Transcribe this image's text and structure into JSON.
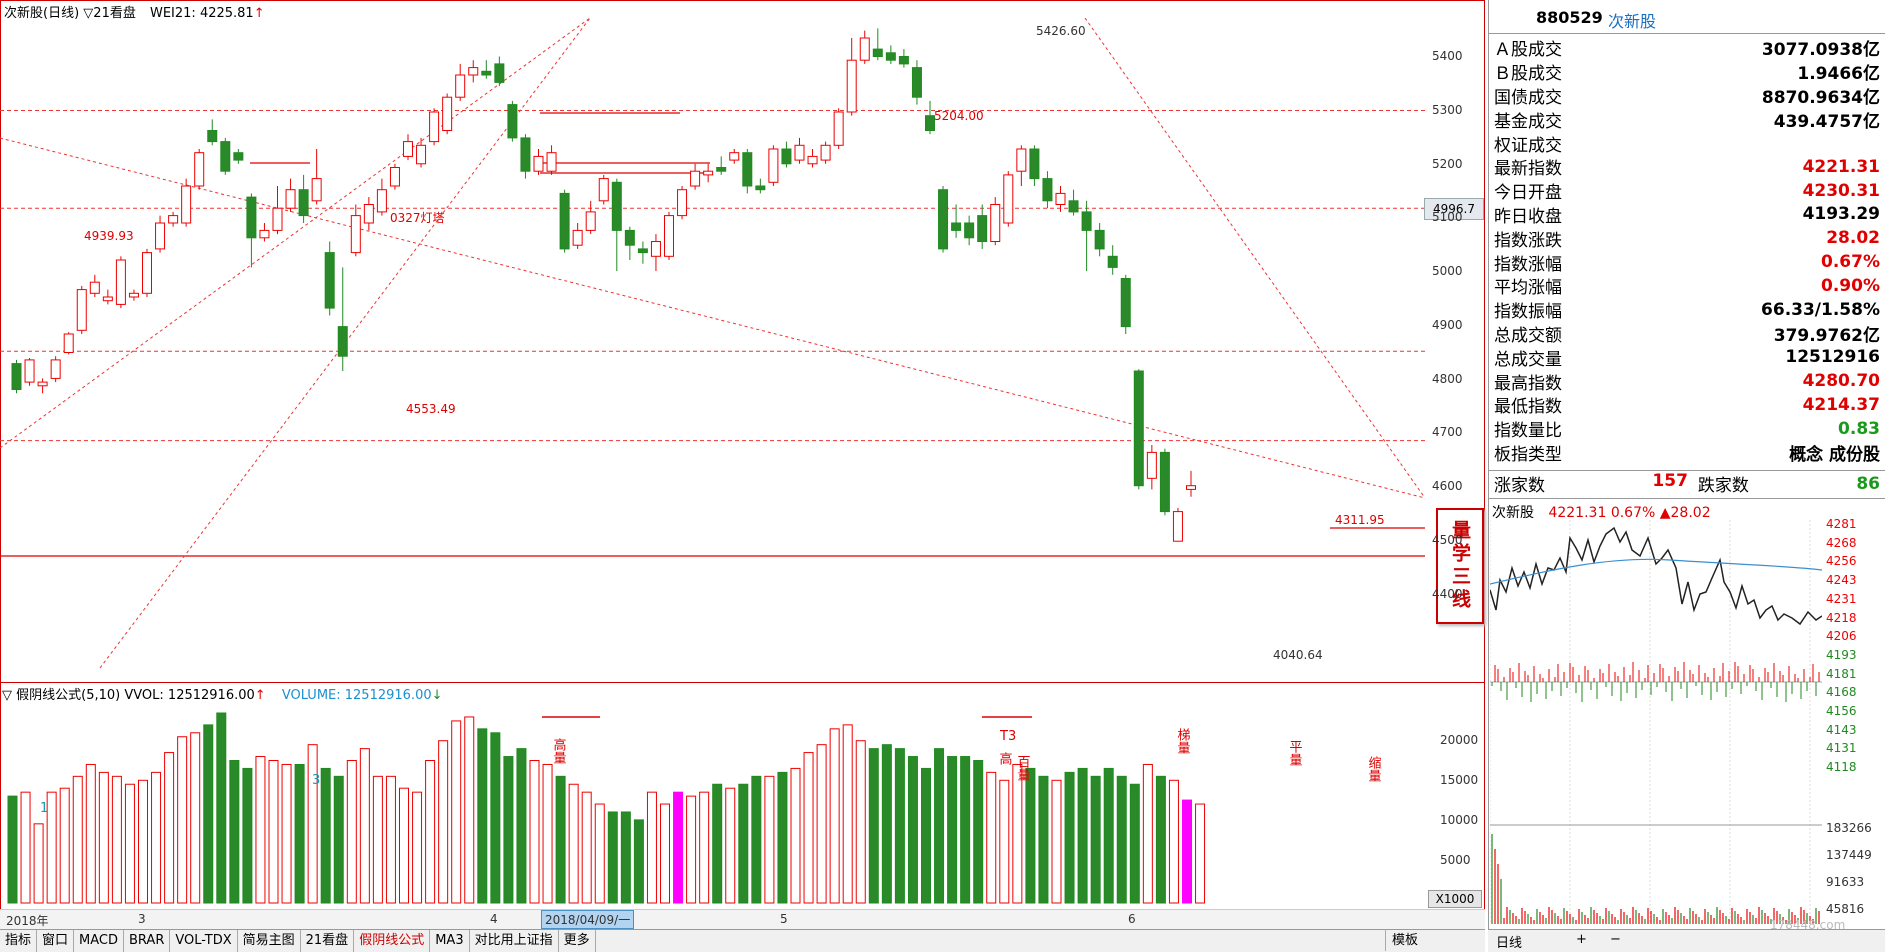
{
  "main": {
    "stock_name": "次新股(日线)",
    "marker": "▽21看盘",
    "indicator": "WEI21: 4225.81",
    "indicator_arrow": "↑",
    "price_axis": [
      "5400",
      "5300",
      "5200",
      "5100",
      "5000",
      "4900",
      "4800",
      "4700",
      "4600",
      "4500",
      "4400"
    ],
    "current_price_tag": "4996.7",
    "annotations": {
      "high": "5426.60",
      "line_5204": "5204.00",
      "line_4939": "4939.93",
      "label_0327": "0327灯塔",
      "line_4553": "4553.49",
      "line_4311": "4311.95",
      "low": "4040.64"
    },
    "seal_text": "量学三线"
  },
  "volume": {
    "title": "▽ 假阴线公式(5,10)",
    "vvol": "VVOL: 12512916.00",
    "vvol_arrow": "↑",
    "volume": "VOLUME: 12512916.00",
    "volume_arrow": "↓",
    "axis": [
      "20000",
      "15000",
      "10000",
      "5000"
    ],
    "unit": "X1000",
    "labels": {
      "one": "1",
      "three": "3",
      "gaoliang": "高量",
      "t3": "T3",
      "gao": "高",
      "bai": "百量",
      "ti": "梯量",
      "ping": "平量",
      "suo": "缩量"
    }
  },
  "date_axis": {
    "year": "2018年",
    "m3": "3",
    "m4": "4",
    "selected": "2018/04/09/一",
    "m5": "5",
    "m6": "6"
  },
  "toolbar": {
    "tabs": [
      "指标",
      "窗口",
      "MACD",
      "BRAR",
      "VOL-TDX",
      "简易主图",
      "21看盘",
      "假阴线公式",
      "MA3",
      "对比用上证指",
      "更多"
    ],
    "active": "假阴线公式",
    "template": "模板"
  },
  "quote": {
    "code": "880529",
    "name": "次新股",
    "rows": [
      {
        "label": "Ａ股成交",
        "value": "3077.0938亿",
        "color": "black"
      },
      {
        "label": "Ｂ股成交",
        "value": "1.9466亿",
        "color": "black"
      },
      {
        "label": "国债成交",
        "value": "8870.9634亿",
        "color": "black"
      },
      {
        "label": "基金成交",
        "value": "439.4757亿",
        "color": "black"
      },
      {
        "label": "权证成交",
        "value": "",
        "color": "black"
      },
      {
        "label": "最新指数",
        "value": "4221.31",
        "color": "red"
      },
      {
        "label": "今日开盘",
        "value": "4230.31",
        "color": "red"
      },
      {
        "label": "昨日收盘",
        "value": "4193.29",
        "color": "black"
      },
      {
        "label": "指数涨跌",
        "value": "28.02",
        "color": "red"
      },
      {
        "label": "指数涨幅",
        "value": "0.67%",
        "color": "red"
      },
      {
        "label": "平均涨幅",
        "value": "0.90%",
        "color": "red"
      },
      {
        "label": "指数振幅",
        "value": "66.33/1.58%",
        "color": "black"
      },
      {
        "label": "总成交额",
        "value": "379.9762亿",
        "color": "black"
      },
      {
        "label": "总成交量",
        "value": "12512916",
        "color": "black"
      },
      {
        "label": "最高指数",
        "value": "4280.70",
        "color": "red"
      },
      {
        "label": "最低指数",
        "value": "4214.37",
        "color": "red"
      },
      {
        "label": "指数量比",
        "value": "0.83",
        "color": "green"
      },
      {
        "label": "板指类型",
        "value": "概念 成份股",
        "color": "black"
      }
    ],
    "rise_label": "涨家数",
    "rise_value": "157",
    "fall_label": "跌家数",
    "fall_value": "86"
  },
  "intraday": {
    "name": "次新股",
    "price": "4221.31",
    "pct": "0.67%",
    "change": "▲28.02",
    "axis": [
      "4281",
      "4268",
      "4256",
      "4243",
      "4231",
      "4218",
      "4206",
      "4193",
      "4181",
      "4168",
      "4156",
      "4143",
      "4131",
      "4118"
    ],
    "vol_axis": [
      "183266",
      "137449",
      "91633",
      "45816"
    ],
    "bottom_label": "日线",
    "plus": "+",
    "minus": "−",
    "watermark": "178448.com"
  }
}
